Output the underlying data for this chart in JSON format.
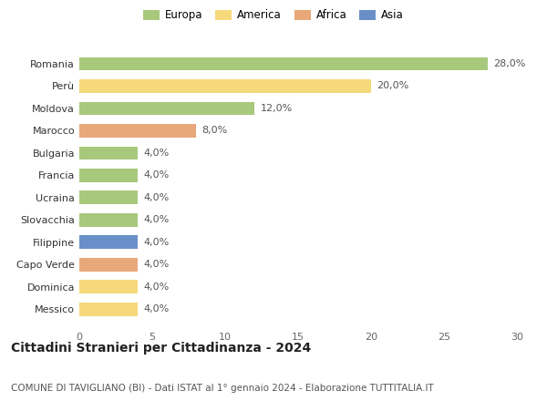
{
  "countries": [
    "Messico",
    "Dominica",
    "Capo Verde",
    "Filippine",
    "Slovacchia",
    "Ucraina",
    "Francia",
    "Bulgaria",
    "Marocco",
    "Moldova",
    "Perù",
    "Romania"
  ],
  "values": [
    4.0,
    4.0,
    4.0,
    4.0,
    4.0,
    4.0,
    4.0,
    4.0,
    8.0,
    12.0,
    20.0,
    28.0
  ],
  "continents": [
    "America",
    "America",
    "Africa",
    "Asia",
    "Europa",
    "Europa",
    "Europa",
    "Europa",
    "Africa",
    "Europa",
    "America",
    "Europa"
  ],
  "labels": [
    "4,0%",
    "4,0%",
    "4,0%",
    "4,0%",
    "4,0%",
    "4,0%",
    "4,0%",
    "4,0%",
    "8,0%",
    "12,0%",
    "20,0%",
    "28,0%"
  ],
  "colors": {
    "Europa": "#a8c87c",
    "America": "#f5d97a",
    "Africa": "#e8a87a",
    "Asia": "#6a8fc8"
  },
  "legend_labels": [
    "Europa",
    "America",
    "Africa",
    "Asia"
  ],
  "legend_colors": [
    "#a8c87c",
    "#f5d97a",
    "#e8a87a",
    "#6a8fc8"
  ],
  "xlim": [
    0,
    30
  ],
  "xticks": [
    0,
    5,
    10,
    15,
    20,
    25,
    30
  ],
  "title": "Cittadini Stranieri per Cittadinanza - 2024",
  "subtitle": "COMUNE DI TAVIGLIANO (BI) - Dati ISTAT al 1° gennaio 2024 - Elaborazione TUTTITALIA.IT",
  "background_color": "#ffffff",
  "bar_height": 0.6,
  "label_fontsize": 8,
  "title_fontsize": 10,
  "subtitle_fontsize": 7.5,
  "tick_fontsize": 8,
  "legend_fontsize": 8.5
}
